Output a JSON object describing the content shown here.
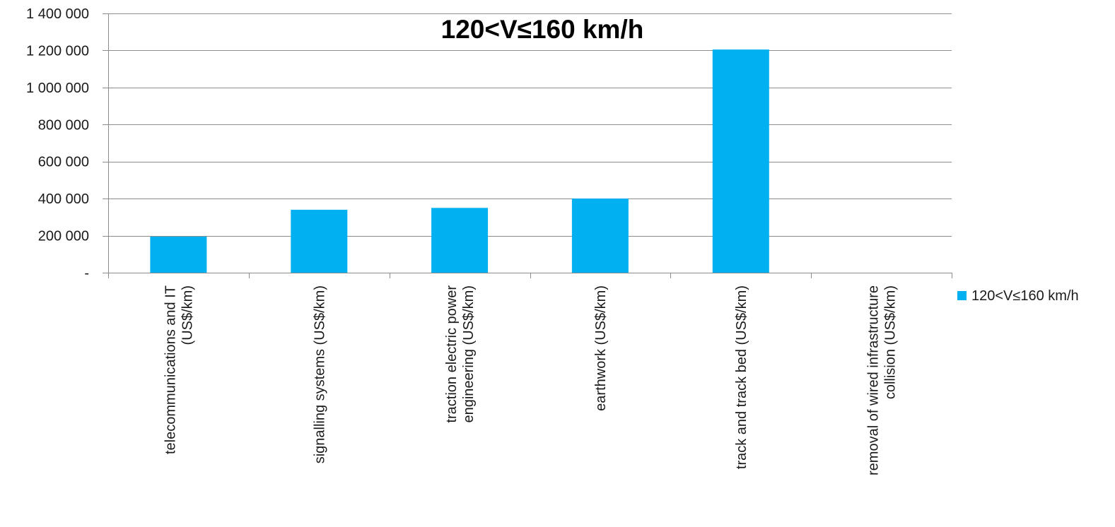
{
  "chart_data": {
    "type": "bar",
    "title": "120<V≤160 km/h",
    "xlabel": "",
    "ylabel": "",
    "categories": [
      [
        "telecommunications and IT",
        "(US$/km)"
      ],
      [
        "signalling systems (US$/km)"
      ],
      [
        "traction electric power",
        "engineering (US$/km)"
      ],
      [
        "earthwork (US$/km)"
      ],
      [
        "track and track bed (US$/km)"
      ],
      [
        "removal of wired infrastructure",
        "collision (US$/km)"
      ]
    ],
    "series": [
      {
        "name": "120<V≤160 km/h",
        "color": "#00B0F0",
        "values": [
          195000,
          340000,
          350000,
          400000,
          1205000,
          0
        ]
      }
    ],
    "ylim": [
      0,
      1400000
    ],
    "yticks": [
      0,
      200000,
      400000,
      600000,
      800000,
      1000000,
      1200000,
      1400000
    ],
    "ytick_labels": [
      "-",
      "200 000",
      "400 000",
      "600 000",
      "800 000",
      "1 000 000",
      "1 200 000",
      "1 400 000"
    ],
    "grid": true,
    "legend_position": "right"
  }
}
